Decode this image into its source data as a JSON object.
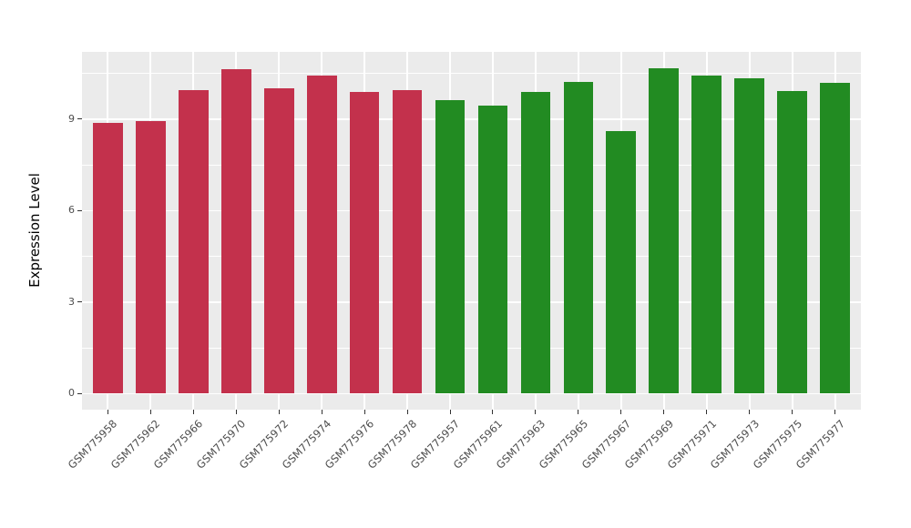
{
  "chart_data": {
    "type": "bar",
    "title": "",
    "xlabel": "",
    "ylabel": "Expression Level",
    "categories": [
      "GSM775958",
      "GSM775962",
      "GSM775966",
      "GSM775970",
      "GSM775972",
      "GSM775974",
      "GSM775976",
      "GSM775978",
      "GSM775957",
      "GSM775961",
      "GSM775963",
      "GSM775965",
      "GSM775967",
      "GSM775969",
      "GSM775971",
      "GSM775973",
      "GSM775975",
      "GSM775977"
    ],
    "values": [
      8.88,
      8.93,
      9.96,
      10.65,
      10.03,
      10.42,
      9.9,
      9.96,
      9.64,
      9.46,
      9.9,
      10.21,
      8.6,
      10.68,
      10.43,
      10.33,
      9.94,
      10.18
    ],
    "bar_colors": [
      "#C3314C",
      "#C3314C",
      "#C3314C",
      "#C3314C",
      "#C3314C",
      "#C3314C",
      "#C3314C",
      "#C3314C",
      "#228B22",
      "#228B22",
      "#228B22",
      "#228B22",
      "#228B22",
      "#228B22",
      "#228B22",
      "#228B22",
      "#228B22",
      "#228B22"
    ],
    "groups": [
      {
        "name": "group-red",
        "color": "#C3314C",
        "count": 8
      },
      {
        "name": "group-green",
        "color": "#228B22",
        "count": 10
      }
    ],
    "yticks": [
      0,
      3,
      6,
      9
    ],
    "ytick_labels": [
      "0",
      "3",
      "6",
      "9"
    ],
    "yticks_minor": [
      1.5,
      4.5,
      7.5,
      10.5
    ],
    "ylim": [
      -0.53,
      11.21
    ],
    "bar_width_ratio": 0.7,
    "grid": true,
    "legend_position": "none",
    "panel_background": "#EBEBEB",
    "grid_color": "#FFFFFF",
    "tick_label_color": "#4D4D4D",
    "tick_mark_color": "#333333",
    "axis_title_color": "#000000"
  }
}
